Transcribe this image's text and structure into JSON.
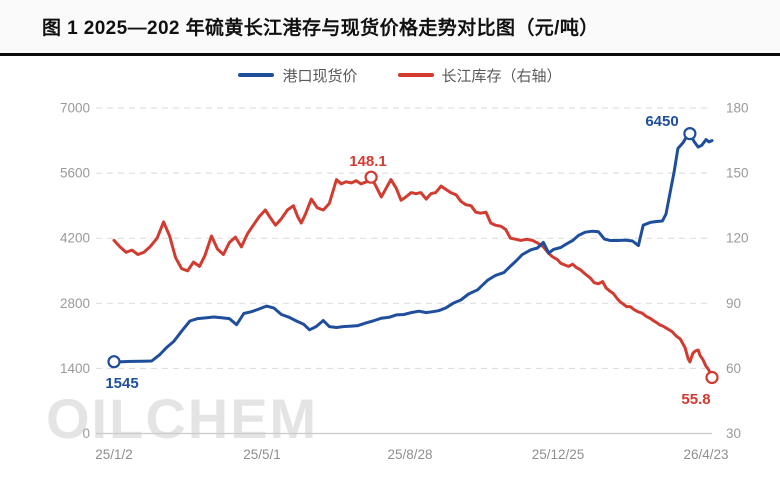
{
  "header": {
    "title": "图 1 2025—202 年硫黄长江港存与现货价格走势对比图（元/吨）"
  },
  "watermark": "OILCHEM",
  "chart_data": {
    "type": "line",
    "title": "图 1 2025—202 年硫黄长江港存与现货价格走势对比图（元/吨）",
    "unit": "元/吨",
    "grid": "horizontal-dashed",
    "legend_position": "top-center",
    "legend": [
      {
        "name": "港口现货价",
        "color": "#1f4f9c"
      },
      {
        "name": "长江库存（右轴）",
        "color": "#d23b30"
      }
    ],
    "x_axis": {
      "tick_labels": [
        "25/1/2",
        "25/5/1",
        "25/8/28",
        "25/12/25",
        "26/4/23"
      ]
    },
    "y_axis_left": {
      "min": 0,
      "max": 7000,
      "ticks": [
        "7000",
        "5600",
        "4200",
        "2800",
        "1400",
        "0"
      ]
    },
    "y_axis_right": {
      "min": 30,
      "max": 180,
      "ticks": [
        "180",
        "150",
        "120",
        "90",
        "60",
        "30"
      ]
    },
    "series": [
      {
        "name": "港口现货价",
        "axis": "left",
        "color": "#1f4f9c",
        "points": [
          [
            0,
            1545
          ],
          [
            0.013,
            1545
          ],
          [
            0.03,
            1550
          ],
          [
            0.047,
            1552
          ],
          [
            0.063,
            1560
          ],
          [
            0.077,
            1700
          ],
          [
            0.088,
            1850
          ],
          [
            0.1,
            1980
          ],
          [
            0.113,
            2200
          ],
          [
            0.127,
            2420
          ],
          [
            0.14,
            2470
          ],
          [
            0.155,
            2490
          ],
          [
            0.167,
            2505
          ],
          [
            0.18,
            2490
          ],
          [
            0.193,
            2470
          ],
          [
            0.205,
            2340
          ],
          [
            0.217,
            2580
          ],
          [
            0.23,
            2620
          ],
          [
            0.243,
            2680
          ],
          [
            0.255,
            2740
          ],
          [
            0.267,
            2700
          ],
          [
            0.28,
            2560
          ],
          [
            0.293,
            2500
          ],
          [
            0.305,
            2420
          ],
          [
            0.317,
            2350
          ],
          [
            0.327,
            2230
          ],
          [
            0.338,
            2300
          ],
          [
            0.35,
            2430
          ],
          [
            0.36,
            2300
          ],
          [
            0.372,
            2280
          ],
          [
            0.383,
            2300
          ],
          [
            0.397,
            2310
          ],
          [
            0.408,
            2320
          ],
          [
            0.422,
            2380
          ],
          [
            0.433,
            2420
          ],
          [
            0.447,
            2480
          ],
          [
            0.46,
            2500
          ],
          [
            0.472,
            2550
          ],
          [
            0.485,
            2560
          ],
          [
            0.497,
            2600
          ],
          [
            0.51,
            2630
          ],
          [
            0.522,
            2600
          ],
          [
            0.533,
            2620
          ],
          [
            0.543,
            2640
          ],
          [
            0.555,
            2700
          ],
          [
            0.567,
            2800
          ],
          [
            0.58,
            2870
          ],
          [
            0.593,
            3000
          ],
          [
            0.608,
            3090
          ],
          [
            0.625,
            3300
          ],
          [
            0.638,
            3400
          ],
          [
            0.652,
            3460
          ],
          [
            0.663,
            3600
          ],
          [
            0.673,
            3720
          ],
          [
            0.683,
            3850
          ],
          [
            0.697,
            3950
          ],
          [
            0.708,
            3990
          ],
          [
            0.718,
            4110
          ],
          [
            0.727,
            3880
          ],
          [
            0.735,
            3960
          ],
          [
            0.747,
            4000
          ],
          [
            0.757,
            4080
          ],
          [
            0.767,
            4150
          ],
          [
            0.777,
            4260
          ],
          [
            0.788,
            4330
          ],
          [
            0.8,
            4350
          ],
          [
            0.81,
            4340
          ],
          [
            0.82,
            4180
          ],
          [
            0.83,
            4150
          ],
          [
            0.843,
            4150
          ],
          [
            0.855,
            4160
          ],
          [
            0.867,
            4140
          ],
          [
            0.877,
            4040
          ],
          [
            0.885,
            4480
          ],
          [
            0.897,
            4540
          ],
          [
            0.907,
            4560
          ],
          [
            0.917,
            4570
          ],
          [
            0.923,
            4720
          ],
          [
            0.93,
            5180
          ],
          [
            0.937,
            5650
          ],
          [
            0.943,
            6130
          ],
          [
            0.952,
            6260
          ],
          [
            0.958,
            6400
          ],
          [
            0.963,
            6450
          ],
          [
            0.97,
            6280
          ],
          [
            0.977,
            6160
          ],
          [
            0.983,
            6200
          ],
          [
            0.99,
            6320
          ],
          [
            0.995,
            6270
          ],
          [
            1,
            6300
          ]
        ]
      },
      {
        "name": "长江库存（右轴）",
        "axis": "right",
        "color": "#d23b30",
        "points": [
          [
            0,
            119
          ],
          [
            0.01,
            116
          ],
          [
            0.02,
            113.5
          ],
          [
            0.03,
            114.5
          ],
          [
            0.04,
            112.5
          ],
          [
            0.05,
            113.5
          ],
          [
            0.06,
            116
          ],
          [
            0.072,
            120
          ],
          [
            0.083,
            127.5
          ],
          [
            0.093,
            121
          ],
          [
            0.103,
            111
          ],
          [
            0.113,
            106
          ],
          [
            0.123,
            105
          ],
          [
            0.133,
            109
          ],
          [
            0.143,
            107
          ],
          [
            0.152,
            112
          ],
          [
            0.163,
            121
          ],
          [
            0.173,
            115
          ],
          [
            0.183,
            112.5
          ],
          [
            0.193,
            118
          ],
          [
            0.203,
            120.5
          ],
          [
            0.213,
            116
          ],
          [
            0.223,
            122
          ],
          [
            0.233,
            126
          ],
          [
            0.243,
            130
          ],
          [
            0.253,
            133
          ],
          [
            0.26,
            130
          ],
          [
            0.27,
            126
          ],
          [
            0.28,
            129
          ],
          [
            0.29,
            133
          ],
          [
            0.3,
            135
          ],
          [
            0.307,
            130
          ],
          [
            0.313,
            127
          ],
          [
            0.32,
            131
          ],
          [
            0.33,
            138
          ],
          [
            0.34,
            134
          ],
          [
            0.35,
            133
          ],
          [
            0.36,
            136
          ],
          [
            0.372,
            147
          ],
          [
            0.38,
            145
          ],
          [
            0.388,
            146
          ],
          [
            0.397,
            145.5
          ],
          [
            0.405,
            146.5
          ],
          [
            0.413,
            145
          ],
          [
            0.422,
            146
          ],
          [
            0.43,
            148.1
          ],
          [
            0.438,
            144
          ],
          [
            0.447,
            139
          ],
          [
            0.455,
            143
          ],
          [
            0.463,
            147
          ],
          [
            0.472,
            143
          ],
          [
            0.48,
            137.5
          ],
          [
            0.488,
            139
          ],
          [
            0.497,
            141
          ],
          [
            0.505,
            140.5
          ],
          [
            0.513,
            141
          ],
          [
            0.522,
            138
          ],
          [
            0.53,
            140.5
          ],
          [
            0.538,
            141
          ],
          [
            0.547,
            144
          ],
          [
            0.555,
            142.5
          ],
          [
            0.563,
            141
          ],
          [
            0.572,
            140
          ],
          [
            0.58,
            137
          ],
          [
            0.588,
            135.5
          ],
          [
            0.597,
            135
          ],
          [
            0.605,
            132
          ],
          [
            0.613,
            131.5
          ],
          [
            0.622,
            132
          ],
          [
            0.63,
            127
          ],
          [
            0.638,
            126
          ],
          [
            0.647,
            125.5
          ],
          [
            0.655,
            124
          ],
          [
            0.663,
            120
          ],
          [
            0.672,
            119.5
          ],
          [
            0.68,
            119
          ],
          [
            0.69,
            119.5
          ],
          [
            0.7,
            119
          ],
          [
            0.71,
            117.5
          ],
          [
            0.718,
            116
          ],
          [
            0.727,
            113
          ],
          [
            0.733,
            111.5
          ],
          [
            0.742,
            110
          ],
          [
            0.747,
            108.5
          ],
          [
            0.755,
            107.5
          ],
          [
            0.76,
            107
          ],
          [
            0.767,
            108
          ],
          [
            0.773,
            106.5
          ],
          [
            0.78,
            105.5
          ],
          [
            0.788,
            103.5
          ],
          [
            0.797,
            101.5
          ],
          [
            0.803,
            99.5
          ],
          [
            0.81,
            99
          ],
          [
            0.817,
            100
          ],
          [
            0.823,
            97
          ],
          [
            0.83,
            95.5
          ],
          [
            0.835,
            94.5
          ],
          [
            0.842,
            92
          ],
          [
            0.847,
            90.5
          ],
          [
            0.85,
            90
          ],
          [
            0.857,
            88.5
          ],
          [
            0.863,
            88.5
          ],
          [
            0.87,
            87
          ],
          [
            0.877,
            86
          ],
          [
            0.883,
            85.5
          ],
          [
            0.89,
            84
          ],
          [
            0.897,
            83
          ],
          [
            0.902,
            82
          ],
          [
            0.908,
            81
          ],
          [
            0.913,
            80
          ],
          [
            0.918,
            79.5
          ],
          [
            0.927,
            78
          ],
          [
            0.933,
            77
          ],
          [
            0.94,
            75
          ],
          [
            0.947,
            73.5
          ],
          [
            0.952,
            71
          ],
          [
            0.955,
            69.5
          ],
          [
            0.96,
            64.5
          ],
          [
            0.963,
            63
          ],
          [
            0.968,
            67
          ],
          [
            0.972,
            68
          ],
          [
            0.977,
            68.5
          ],
          [
            0.98,
            66
          ],
          [
            0.985,
            64
          ],
          [
            0.99,
            61
          ],
          [
            0.993,
            60
          ],
          [
            0.997,
            58
          ],
          [
            1,
            55.8
          ]
        ]
      }
    ],
    "annotations": [
      {
        "series": 0,
        "label": "1545",
        "x": 0,
        "value": 1545
      },
      {
        "series": 0,
        "label": "6450",
        "x": 0.963,
        "value": 6450
      },
      {
        "series": 1,
        "label": "148.1",
        "x": 0.43,
        "value": 148.1
      },
      {
        "series": 1,
        "label": "55.8",
        "x": 1,
        "value": 55.8
      }
    ]
  }
}
